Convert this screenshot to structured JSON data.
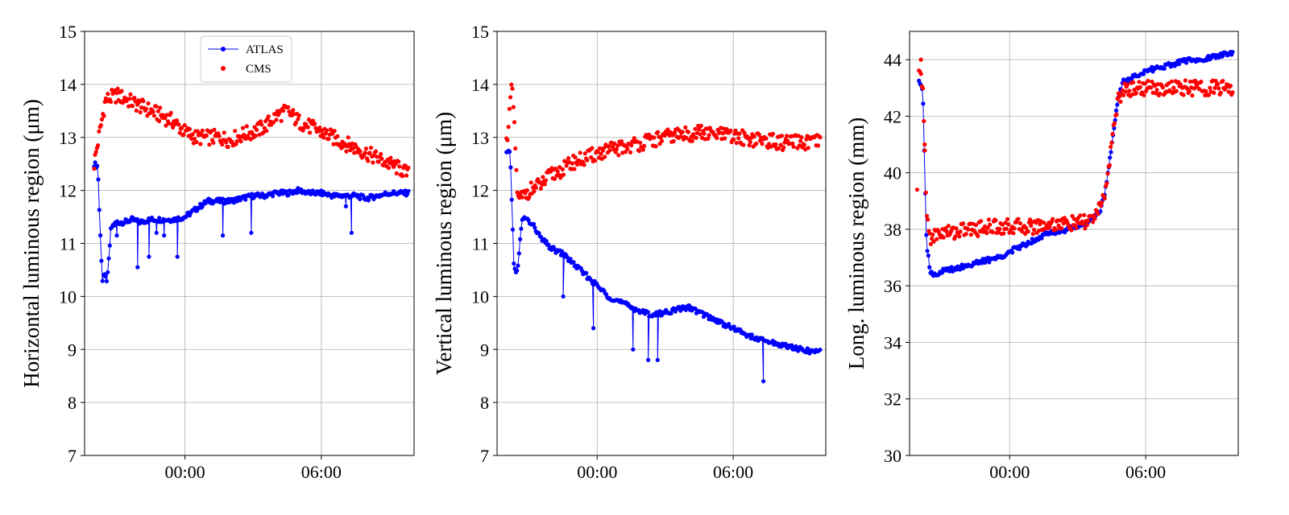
{
  "chart_data": [
    {
      "type": "line",
      "ylabel": "Horizontal luminous region (μm)",
      "ylim": [
        7,
        15
      ],
      "yticks": [
        "7",
        "8",
        "9",
        "10",
        "11",
        "12",
        "13",
        "14",
        "15"
      ],
      "xlim": [
        "19:35",
        "10:05"
      ],
      "xticks": [
        "00:00",
        "06:00"
      ],
      "grid": true,
      "legend": {
        "placement": "top-center",
        "entries": [
          "ATLAS",
          "CMS"
        ]
      },
      "series": [
        {
          "name": "ATLAS",
          "color": "#0000ff",
          "style": "line-markers",
          "x": [
            "20:00",
            "20:10",
            "20:15",
            "20:22",
            "20:25",
            "20:35",
            "20:45",
            "21:00",
            "21:20",
            "21:40",
            "22:00",
            "22:30",
            "23:00",
            "23:30",
            "00:00",
            "00:30",
            "01:00",
            "01:30",
            "02:00",
            "02:30",
            "03:00",
            "03:30",
            "04:00",
            "04:30",
            "05:00",
            "05:30",
            "06:00",
            "06:30",
            "07:00",
            "07:30",
            "08:00",
            "08:30",
            "09:00",
            "09:30",
            "09:50"
          ],
          "values": [
            12.5,
            12.45,
            11.4,
            10.3,
            10.4,
            10.3,
            11.3,
            11.4,
            11.4,
            11.45,
            11.4,
            11.45,
            11.45,
            11.45,
            11.5,
            11.65,
            11.8,
            11.8,
            11.8,
            11.85,
            11.9,
            11.9,
            11.95,
            11.95,
            12.0,
            11.95,
            11.95,
            11.9,
            11.9,
            11.9,
            11.85,
            11.9,
            11.95,
            11.95,
            11.95
          ]
        },
        {
          "name": "CMS",
          "color": "#ff0000",
          "style": "markers",
          "x": [
            "20:00",
            "20:30",
            "21:00",
            "21:30",
            "22:00",
            "22:30",
            "23:00",
            "23:30",
            "00:00",
            "00:30",
            "01:00",
            "01:30",
            "02:00",
            "02:30",
            "03:00",
            "03:30",
            "04:00",
            "04:30",
            "05:00",
            "05:30",
            "06:00",
            "06:30",
            "07:00",
            "07:30",
            "08:00",
            "08:30",
            "09:00",
            "09:30",
            "09:50"
          ],
          "values": [
            12.5,
            13.7,
            13.8,
            13.7,
            13.6,
            13.5,
            13.4,
            13.3,
            13.1,
            13.0,
            13.0,
            13.0,
            12.95,
            13.05,
            13.1,
            13.2,
            13.4,
            13.5,
            13.3,
            13.2,
            13.1,
            13.0,
            12.9,
            12.8,
            12.7,
            12.6,
            12.5,
            12.4,
            12.3
          ]
        }
      ],
      "outliers": {
        "ATLAS": {
          "x": [
            "21:00",
            "21:55",
            "22:25",
            "22:45",
            "23:05",
            "23:40",
            "01:40",
            "02:55",
            "07:05",
            "07:20"
          ],
          "values": [
            11.15,
            10.55,
            10.75,
            11.2,
            11.15,
            10.75,
            11.15,
            11.2,
            11.7,
            11.2
          ]
        }
      }
    },
    {
      "type": "line",
      "ylabel": "Vertical luminous region (μm)",
      "ylim": [
        7,
        15
      ],
      "yticks": [
        "7",
        "8",
        "9",
        "10",
        "11",
        "12",
        "13",
        "14",
        "15"
      ],
      "xlim": [
        "19:35",
        "10:05"
      ],
      "xticks": [
        "00:00",
        "06:00"
      ],
      "grid": true,
      "series": [
        {
          "name": "ATLAS",
          "color": "#0000ff",
          "style": "line-markers",
          "x": [
            "20:00",
            "20:10",
            "20:20",
            "20:30",
            "20:40",
            "20:50",
            "21:00",
            "21:15",
            "21:30",
            "22:00",
            "22:30",
            "23:00",
            "23:30",
            "00:00",
            "00:30",
            "01:00",
            "01:30",
            "02:00",
            "02:30",
            "03:00",
            "03:30",
            "04:00",
            "04:30",
            "05:00",
            "05:30",
            "06:00",
            "06:30",
            "07:00",
            "07:30",
            "08:00",
            "08:30",
            "09:00",
            "09:30",
            "09:50"
          ],
          "values": [
            12.7,
            12.7,
            10.5,
            10.5,
            11.4,
            11.5,
            11.4,
            11.3,
            11.1,
            10.9,
            10.8,
            10.6,
            10.4,
            10.2,
            10.0,
            9.9,
            9.8,
            9.7,
            9.65,
            9.7,
            9.75,
            9.8,
            9.7,
            9.6,
            9.5,
            9.4,
            9.3,
            9.2,
            9.15,
            9.1,
            9.05,
            9.0,
            8.95,
            9.0
          ]
        },
        {
          "name": "CMS",
          "color": "#ff0000",
          "style": "markers",
          "x": [
            "20:00",
            "20:15",
            "20:30",
            "20:45",
            "21:00",
            "21:30",
            "22:00",
            "22:30",
            "23:00",
            "23:30",
            "00:00",
            "00:30",
            "01:00",
            "01:30",
            "02:00",
            "02:30",
            "03:00",
            "03:30",
            "04:00",
            "04:30",
            "05:00",
            "05:30",
            "06:00",
            "06:30",
            "07:00",
            "07:30",
            "08:00",
            "08:30",
            "09:00",
            "09:30",
            "09:50"
          ],
          "values": [
            12.9,
            14.0,
            11.8,
            11.9,
            12.0,
            12.1,
            12.3,
            12.4,
            12.55,
            12.6,
            12.7,
            12.75,
            12.8,
            12.85,
            12.9,
            12.95,
            13.0,
            13.05,
            13.05,
            13.1,
            13.05,
            13.05,
            13.0,
            13.0,
            12.95,
            12.95,
            12.9,
            12.9,
            12.9,
            12.9,
            12.9
          ]
        }
      ],
      "outliers": {
        "ATLAS": {
          "x": [
            "22:30",
            "23:50",
            "01:35",
            "02:15",
            "02:40",
            "07:20"
          ],
          "values": [
            10.0,
            9.4,
            9.0,
            8.8,
            8.8,
            8.4
          ]
        }
      }
    },
    {
      "type": "line",
      "ylabel": "Long. luminous region (mm)",
      "ylim": [
        30,
        45
      ],
      "yticks": [
        "30",
        "32",
        "34",
        "36",
        "38",
        "40",
        "42",
        "44"
      ],
      "xlim": [
        "19:35",
        "10:05"
      ],
      "xticks": [
        "00:00",
        "06:00"
      ],
      "grid": true,
      "series": [
        {
          "name": "ATLAS",
          "color": "#0000ff",
          "style": "line-markers",
          "x": [
            "20:00",
            "20:10",
            "20:20",
            "20:30",
            "20:40",
            "21:00",
            "21:30",
            "22:00",
            "22:30",
            "23:00",
            "23:30",
            "00:00",
            "00:30",
            "01:00",
            "01:30",
            "02:00",
            "02:30",
            "03:00",
            "03:30",
            "04:00",
            "04:15",
            "04:30",
            "04:45",
            "05:00",
            "05:30",
            "06:00",
            "06:30",
            "07:00",
            "07:30",
            "08:00",
            "08:30",
            "09:00",
            "09:30",
            "09:50"
          ],
          "values": [
            43.3,
            43.0,
            37.5,
            36.5,
            36.4,
            36.5,
            36.6,
            36.7,
            36.8,
            36.9,
            37.0,
            37.2,
            37.4,
            37.6,
            37.8,
            37.9,
            38.0,
            38.1,
            38.3,
            38.6,
            39.5,
            41.0,
            42.5,
            43.2,
            43.4,
            43.6,
            43.7,
            43.8,
            43.9,
            44.0,
            44.0,
            44.1,
            44.2,
            44.2
          ]
        },
        {
          "name": "CMS",
          "color": "#ff0000",
          "style": "markers",
          "x": [
            "20:00",
            "20:10",
            "20:20",
            "20:30",
            "20:45",
            "21:00",
            "21:30",
            "22:00",
            "22:30",
            "23:00",
            "23:30",
            "00:00",
            "00:30",
            "01:00",
            "01:30",
            "02:00",
            "02:30",
            "03:00",
            "03:30",
            "04:00",
            "04:15",
            "04:30",
            "04:45",
            "05:00",
            "05:30",
            "06:00",
            "06:30",
            "07:00",
            "07:30",
            "08:00",
            "08:30",
            "09:00",
            "09:30",
            "09:50"
          ],
          "values": [
            43.5,
            43.2,
            38.5,
            37.7,
            37.8,
            37.9,
            37.9,
            38.0,
            38.0,
            38.1,
            38.1,
            38.1,
            38.1,
            38.1,
            38.15,
            38.2,
            38.2,
            38.2,
            38.3,
            38.7,
            39.5,
            41.0,
            42.5,
            42.9,
            43.0,
            43.0,
            43.0,
            43.0,
            43.0,
            43.0,
            43.0,
            43.0,
            43.0,
            43.0
          ]
        }
      ],
      "outliers": {
        "CMS": {
          "x": [
            "19:55",
            "20:05",
            "20:15"
          ],
          "values": [
            39.4,
            44.0,
            41.0
          ]
        }
      }
    }
  ]
}
